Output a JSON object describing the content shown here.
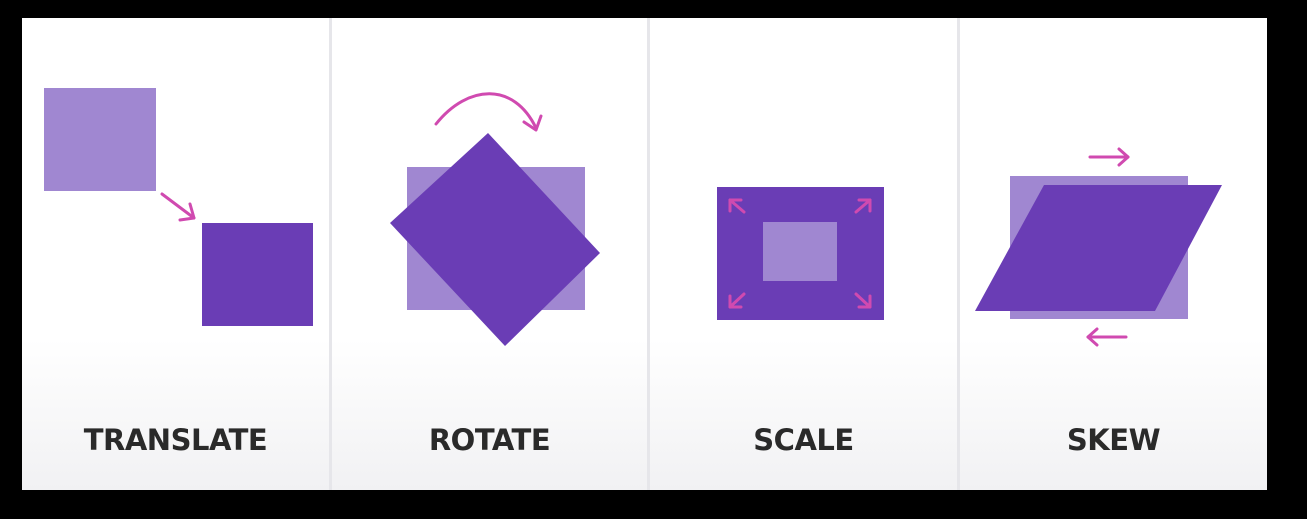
{
  "colors": {
    "shape_dark": "#6a3db5",
    "shape_light": "#a087d1",
    "arrow": "#d04ab0",
    "label_text": "#2a2a2a",
    "frame": "#000000"
  },
  "panels": [
    {
      "label": "TRANSLATE",
      "icon": "translate-diagram"
    },
    {
      "label": "ROTATE",
      "icon": "rotate-diagram"
    },
    {
      "label": "SCALE",
      "icon": "scale-diagram"
    },
    {
      "label": "SKEW",
      "icon": "skew-diagram"
    }
  ]
}
